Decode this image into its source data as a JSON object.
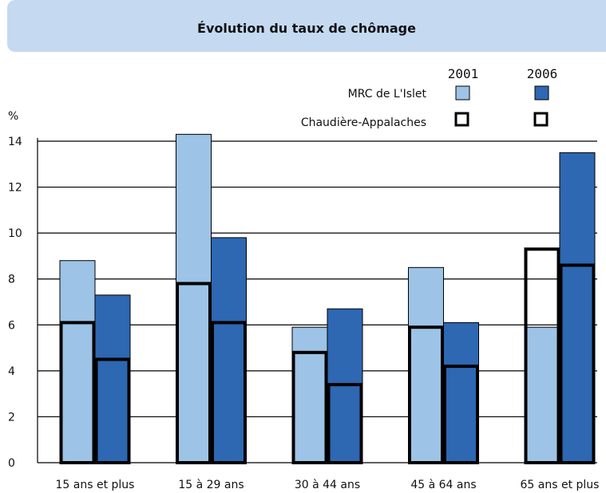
{
  "chart_data": {
    "type": "bar",
    "title": "Évolution du taux de chômage",
    "ylabel": "%",
    "ylim": [
      0,
      14
    ],
    "yticks": [
      "0",
      "2",
      "4",
      "6",
      "8",
      "10",
      "12",
      "14"
    ],
    "grid": true,
    "legend": {
      "position": "top-right",
      "years": [
        "2001",
        "2006"
      ],
      "rows": [
        "MRC de L'Islet",
        "Chaudière-Appalaches"
      ]
    },
    "categories": [
      "15 ans et plus",
      "15 à 29 ans",
      "30 à 44 ans",
      "45 à 64 ans",
      "65 ans et plus"
    ],
    "series": [
      {
        "name": "MRC de L'Islet 2001",
        "type": "filled",
        "year_index": 0,
        "color": "#9dc3e6",
        "values": [
          8.8,
          14.3,
          5.9,
          8.5,
          5.9
        ]
      },
      {
        "name": "MRC de L'Islet 2006",
        "type": "filled",
        "year_index": 1,
        "color": "#2e67b2",
        "values": [
          7.3,
          9.8,
          6.7,
          6.1,
          13.5
        ]
      },
      {
        "name": "Chaudière-Appalaches 2001",
        "type": "outline",
        "year_index": 0,
        "color": "#000000",
        "values": [
          6.1,
          7.8,
          4.8,
          5.9,
          9.3
        ]
      },
      {
        "name": "Chaudière-Appalaches 2006",
        "type": "outline",
        "year_index": 1,
        "color": "#000000",
        "values": [
          4.5,
          6.1,
          3.4,
          4.2,
          8.6
        ]
      }
    ]
  }
}
